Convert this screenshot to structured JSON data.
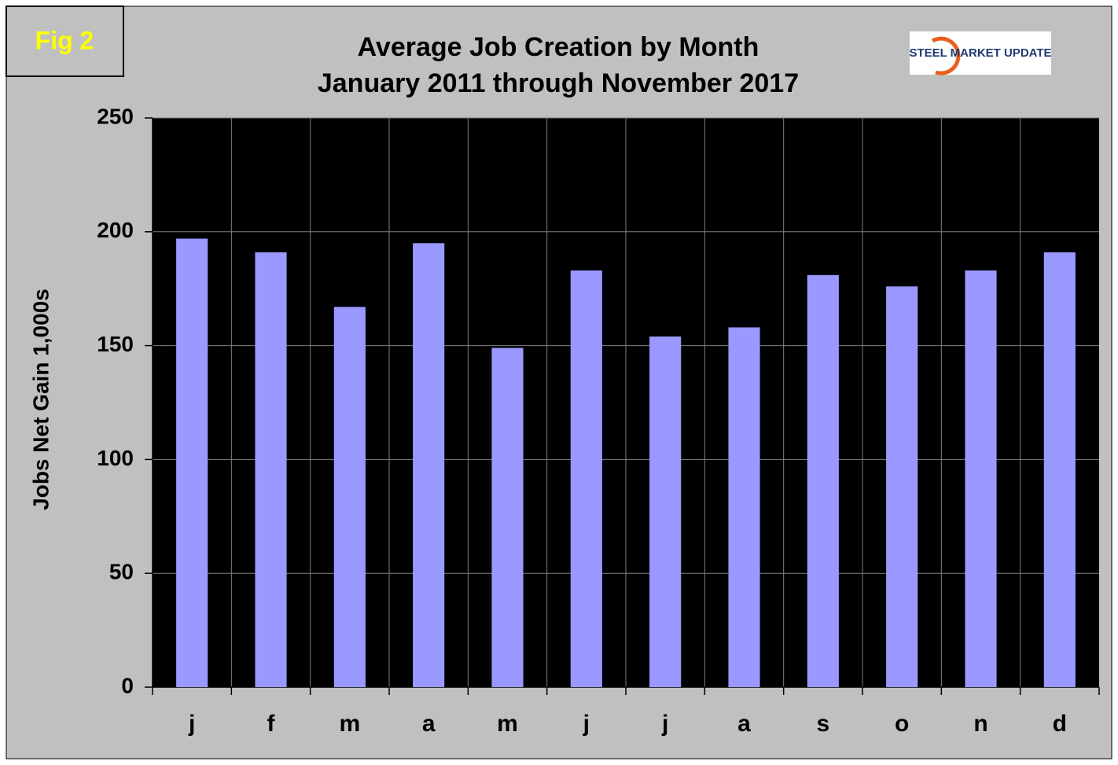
{
  "fig_label": "Fig 2",
  "logo": "STEEL MARKET UPDATE",
  "chart_data": {
    "type": "bar",
    "title": "Average Job Creation by Month",
    "subtitle": "January 2011 through November 2017",
    "y_label": "Jobs Net Gain 1,000s",
    "categories": [
      "j",
      "f",
      "m",
      "a",
      "m",
      "j",
      "j",
      "a",
      "s",
      "o",
      "n",
      "d"
    ],
    "values": [
      197,
      191,
      167,
      195,
      149,
      183,
      154,
      158,
      181,
      176,
      183,
      191
    ],
    "color": "#9999ff",
    "ylim": [
      0,
      250
    ],
    "yticks": [
      0,
      50,
      100,
      150,
      200,
      250
    ],
    "grid": true
  }
}
